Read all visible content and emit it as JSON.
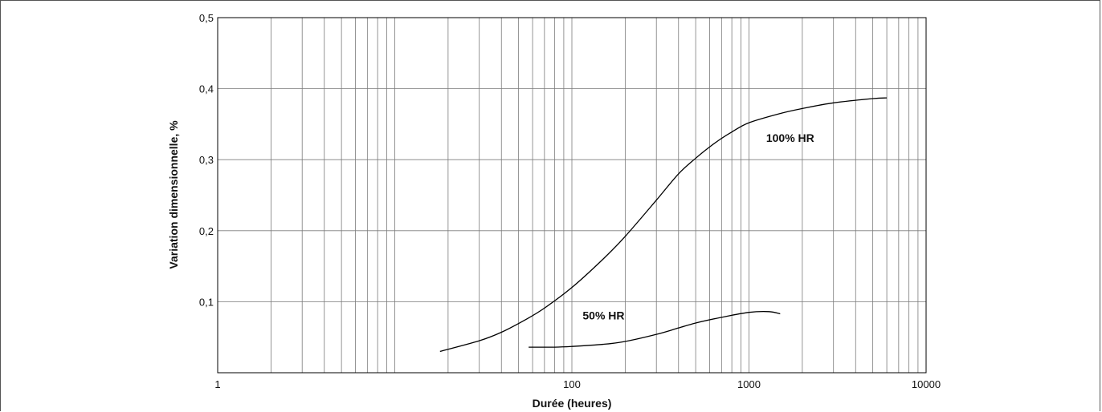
{
  "chart_data": {
    "type": "line",
    "xlabel": "Durée (heures)",
    "ylabel": "Variation dimensionnelle, %",
    "x_scale": "log",
    "xlim": [
      1,
      10000
    ],
    "ylim": [
      0,
      0.5
    ],
    "x_ticks": [
      {
        "value": 1,
        "label": "1"
      },
      {
        "value": 100,
        "label": "100"
      },
      {
        "value": 1000,
        "label": "1000"
      },
      {
        "value": 10000,
        "label": "10000"
      }
    ],
    "y_ticks": [
      {
        "value": 0.1,
        "label": "0,1"
      },
      {
        "value": 0.2,
        "label": "0,2"
      },
      {
        "value": 0.3,
        "label": "0,3"
      },
      {
        "value": 0.4,
        "label": "0,4"
      },
      {
        "value": 0.5,
        "label": "0,5"
      }
    ],
    "grid": true,
    "series": [
      {
        "name": "100% HR",
        "label_at": [
          1250,
          0.325
        ],
        "x": [
          18,
          30,
          40,
          55,
          70,
          100,
          150,
          200,
          300,
          400,
          500,
          600,
          700,
          800,
          1000,
          1500,
          2000,
          3000,
          5000,
          6000
        ],
        "y": [
          0.03,
          0.045,
          0.057,
          0.075,
          0.091,
          0.12,
          0.16,
          0.192,
          0.243,
          0.28,
          0.302,
          0.318,
          0.33,
          0.339,
          0.352,
          0.365,
          0.372,
          0.38,
          0.386,
          0.387
        ]
      },
      {
        "name": "50% HR",
        "label_at": [
          115,
          0.075
        ],
        "x": [
          57,
          80,
          100,
          150,
          200,
          300,
          400,
          500,
          700,
          1000,
          1300,
          1500
        ],
        "y": [
          0.036,
          0.036,
          0.037,
          0.04,
          0.044,
          0.054,
          0.063,
          0.07,
          0.078,
          0.085,
          0.086,
          0.083
        ]
      }
    ]
  }
}
